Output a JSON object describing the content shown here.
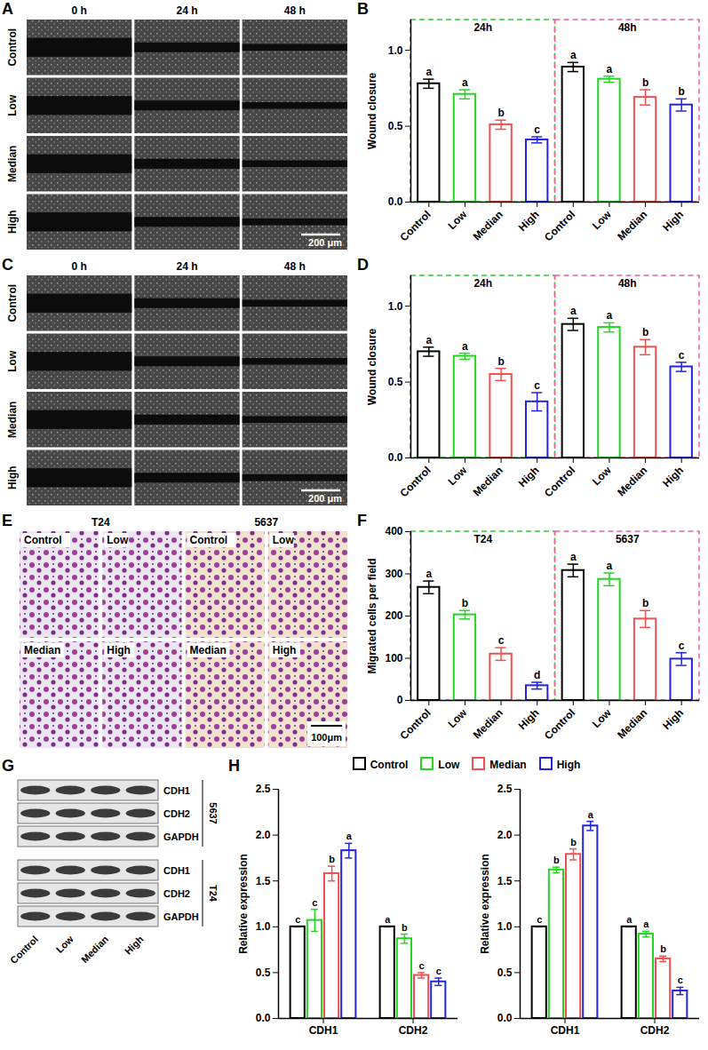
{
  "chart_data": [
    {
      "panel": "B",
      "type": "bar",
      "ylabel": "Wound closure",
      "categories": [
        "Control",
        "Low",
        "Median",
        "High"
      ],
      "colors": [
        "#000000",
        "#22d622",
        "#f0504f",
        "#2424e0"
      ],
      "series": [
        {
          "name": "24h",
          "color": "#33cc33",
          "values": [
            0.78,
            0.71,
            0.51,
            0.41
          ],
          "errors": [
            0.03,
            0.03,
            0.03,
            0.02
          ],
          "letters": [
            "a",
            "a",
            "b",
            "c"
          ]
        },
        {
          "name": "48h",
          "color": "#f06090",
          "values": [
            0.89,
            0.81,
            0.69,
            0.64
          ],
          "errors": [
            0.03,
            0.02,
            0.05,
            0.04
          ],
          "letters": [
            "a",
            "a",
            "b",
            "b"
          ]
        }
      ],
      "ylim": [
        0,
        1.2
      ],
      "yticks": [
        {
          "value": 0,
          "label": "0.0"
        },
        {
          "value": 0.5,
          "label": "0.5"
        },
        {
          "value": 1,
          "label": "1.0"
        }
      ]
    },
    {
      "panel": "D",
      "type": "bar",
      "ylabel": "Wound closure",
      "categories": [
        "Control",
        "Low",
        "Median",
        "High"
      ],
      "colors": [
        "#000000",
        "#22d622",
        "#f0504f",
        "#2424e0"
      ],
      "series": [
        {
          "name": "24h",
          "color": "#33cc33",
          "values": [
            0.7,
            0.67,
            0.55,
            0.37
          ],
          "errors": [
            0.03,
            0.02,
            0.04,
            0.06
          ],
          "letters": [
            "a",
            "a",
            "b",
            "c"
          ]
        },
        {
          "name": "48h",
          "color": "#f06090",
          "values": [
            0.88,
            0.86,
            0.73,
            0.6
          ],
          "errors": [
            0.04,
            0.03,
            0.05,
            0.03
          ],
          "letters": [
            "a",
            "a",
            "b",
            "c"
          ]
        }
      ],
      "ylim": [
        0,
        1.2
      ],
      "yticks": [
        {
          "value": 0,
          "label": "0.0"
        },
        {
          "value": 0.5,
          "label": "0.5"
        },
        {
          "value": 1,
          "label": "1.0"
        }
      ]
    },
    {
      "panel": "F",
      "type": "bar",
      "ylabel": "Migrated cells per field",
      "categories": [
        "Control",
        "Low",
        "Median",
        "High"
      ],
      "colors": [
        "#000000",
        "#22d622",
        "#f0504f",
        "#2424e0"
      ],
      "series": [
        {
          "name": "T24",
          "color": "#33cc33",
          "values": [
            268,
            203,
            110,
            35
          ],
          "errors": [
            15,
            10,
            15,
            8
          ],
          "letters": [
            "a",
            "b",
            "c",
            "d"
          ]
        },
        {
          "name": "5637",
          "color": "#f06090",
          "values": [
            308,
            287,
            193,
            98
          ],
          "errors": [
            15,
            15,
            20,
            15
          ],
          "letters": [
            "a",
            "a",
            "b",
            "c"
          ]
        }
      ],
      "ylim": [
        0,
        400
      ],
      "yticks": [
        0,
        100,
        200,
        300,
        400
      ]
    },
    {
      "panel": "H",
      "type": "bar",
      "ylabel": "Relative expression",
      "legend": "top",
      "categories": [
        "CDH1",
        "CDH2"
      ],
      "series": [
        {
          "name": "Control",
          "color": "#000000",
          "values": [
            1.0,
            1.0
          ],
          "errors": [
            0,
            0
          ],
          "letters": [
            "c",
            "a"
          ]
        },
        {
          "name": "Low",
          "color": "#22d622",
          "values": [
            1.07,
            0.87
          ],
          "errors": [
            0.12,
            0.05
          ],
          "letters": [
            "c",
            "b"
          ]
        },
        {
          "name": "Median",
          "color": "#f0504f",
          "values": [
            1.58,
            0.47
          ],
          "errors": [
            0.08,
            0.03
          ],
          "letters": [
            "b",
            "c"
          ]
        },
        {
          "name": "High",
          "color": "#2424e0",
          "values": [
            1.83,
            0.4
          ],
          "errors": [
            0.08,
            0.04
          ],
          "letters": [
            "a",
            "c"
          ]
        }
      ],
      "ylim": [
        0,
        2.5
      ],
      "yticks": [
        {
          "value": 0,
          "label": "0.0"
        },
        {
          "value": 0.5,
          "label": "0.5"
        },
        {
          "value": 1,
          "label": "1.0"
        },
        {
          "value": 1.5,
          "label": "1.5"
        },
        {
          "value": 2,
          "label": "2.0"
        },
        {
          "value": 2.5,
          "label": "2.5"
        }
      ]
    },
    {
      "type": "bar",
      "ylabel": "Relative expression",
      "categories": [
        "CDH1",
        "CDH2"
      ],
      "series": [
        {
          "name": "Control",
          "color": "#000000",
          "values": [
            1.0,
            1.0
          ],
          "errors": [
            0,
            0
          ],
          "letters": [
            "c",
            "a"
          ]
        },
        {
          "name": "Low",
          "color": "#22d622",
          "values": [
            1.62,
            0.92
          ],
          "errors": [
            0.03,
            0.03
          ],
          "letters": [
            "b",
            "a"
          ]
        },
        {
          "name": "Median",
          "color": "#f0504f",
          "values": [
            1.79,
            0.65
          ],
          "errors": [
            0.06,
            0.03
          ],
          "letters": [
            "b",
            "b"
          ]
        },
        {
          "name": "High",
          "color": "#2424e0",
          "values": [
            2.1,
            0.3
          ],
          "errors": [
            0.05,
            0.04
          ],
          "letters": [
            "a",
            "c"
          ]
        }
      ],
      "ylim": [
        0,
        2.5
      ],
      "yticks": [
        {
          "value": 0,
          "label": "0.0"
        },
        {
          "value": 0.5,
          "label": "0.5"
        },
        {
          "value": 1,
          "label": "1.0"
        },
        {
          "value": 1.5,
          "label": "1.5"
        },
        {
          "value": 2,
          "label": "2.0"
        },
        {
          "value": 2.5,
          "label": "2.5"
        }
      ]
    }
  ],
  "image_panels": [
    {
      "panel": "A",
      "columns": [
        "0 h",
        "24 h",
        "48 h"
      ],
      "rows": [
        "Control",
        "Low",
        "Median",
        "High"
      ],
      "scale_bar": "200 μm"
    },
    {
      "panel": "C",
      "columns": [
        "0 h",
        "24 h",
        "48 h"
      ],
      "rows": [
        "Control",
        "Low",
        "Median",
        "High"
      ],
      "scale_bar": "200 μm"
    },
    {
      "panel": "E",
      "groups": [
        {
          "name": "T24",
          "images": [
            "Control",
            "Low",
            "Median",
            "High"
          ]
        },
        {
          "name": "5637",
          "images": [
            "Control",
            "Low",
            "Median",
            "High"
          ]
        }
      ],
      "scale_bar": "100μm"
    },
    {
      "panel": "G",
      "blots": [
        {
          "cell_line": "5637",
          "proteins": [
            "CDH1",
            "CDH2",
            "GAPDH"
          ]
        },
        {
          "cell_line": "T24",
          "proteins": [
            "CDH1",
            "CDH2",
            "GAPDH"
          ]
        }
      ],
      "lanes": [
        "Control",
        "Low",
        "Median",
        "High"
      ]
    }
  ]
}
